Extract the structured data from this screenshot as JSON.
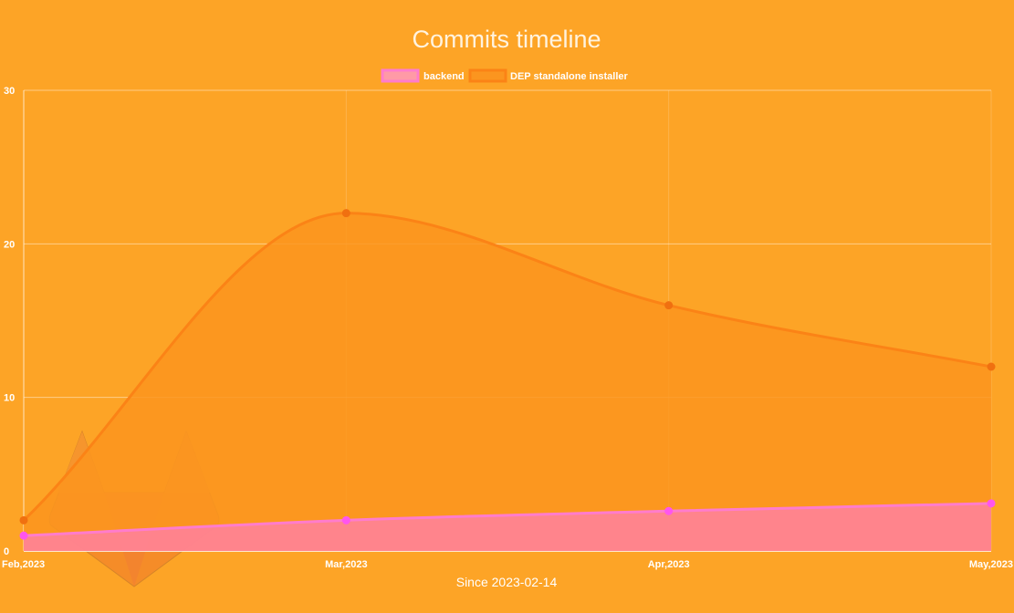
{
  "chart_data": {
    "type": "area",
    "title": "Commits timeline",
    "xlabel": "Since 2023-02-14",
    "ylabel": "",
    "categories": [
      "Feb,2023",
      "Mar,2023",
      "Apr,2023",
      "May,2023"
    ],
    "ylim": [
      0,
      30
    ],
    "yticks": [
      0,
      10,
      20,
      30
    ],
    "grid": true,
    "legend_position": "top-center",
    "series": [
      {
        "name": "backend",
        "values": [
          1,
          2,
          2.6,
          3.1
        ],
        "line_color": "#ff7ccc",
        "fill_color": "#ff80a0",
        "point_color": "#ff55ee"
      },
      {
        "name": "DEP standalone installer",
        "values": [
          2,
          22,
          16,
          12
        ],
        "line_color": "#fb8316",
        "fill_color": "#fb951f",
        "point_color": "#f07010"
      }
    ],
    "background_color": "#fda426"
  },
  "watermark": {
    "icon": "gitlab-logo-icon"
  }
}
